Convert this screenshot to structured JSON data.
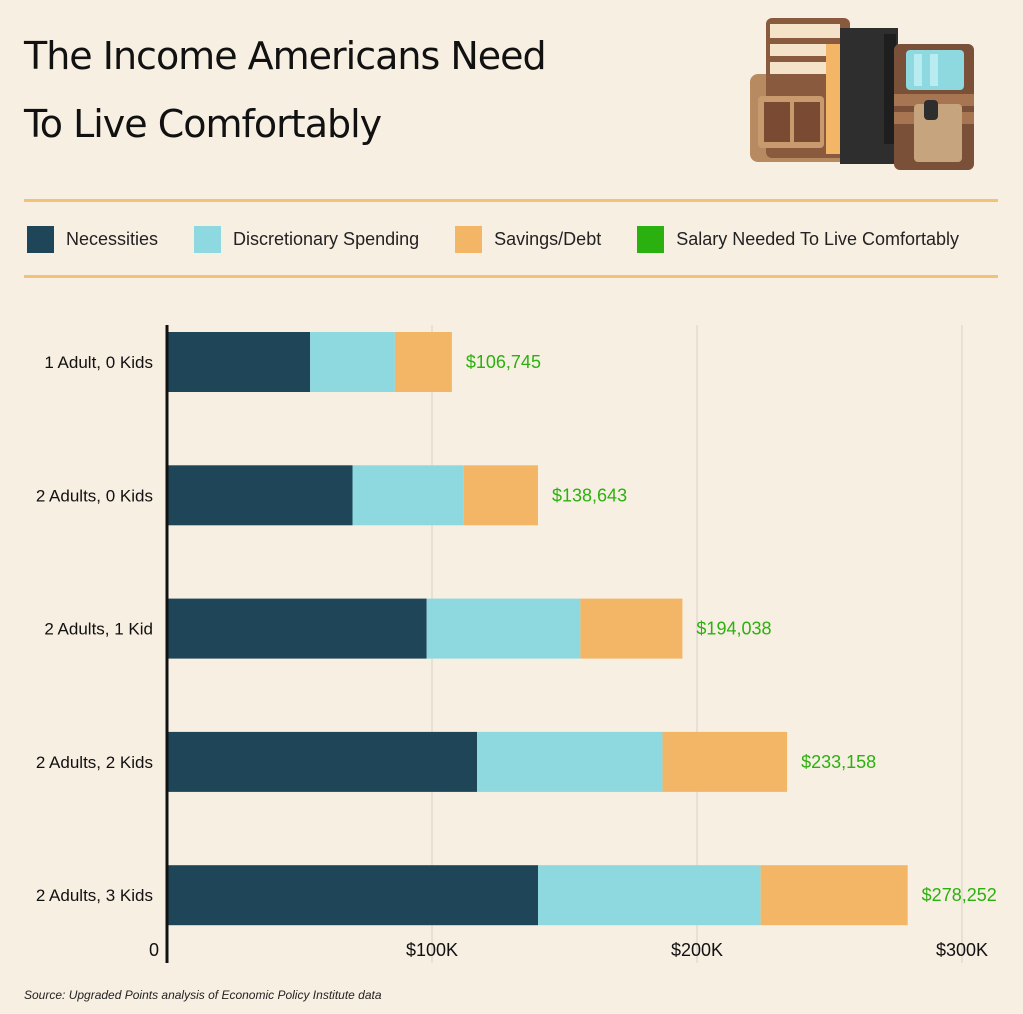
{
  "header": {
    "title_line1": "The Income Americans Need",
    "title_line2": "To Live Comfortably"
  },
  "legend": [
    {
      "label": "Necessities",
      "color": "#1f4559"
    },
    {
      "label": "Discretionary Spending",
      "color": "#8ed8e0"
    },
    {
      "label": "Savings/Debt",
      "color": "#f3b666"
    },
    {
      "label": "Salary Needed To Live Comfortably",
      "color": "#2bb10f"
    }
  ],
  "chart_data": {
    "type": "bar",
    "orientation": "horizontal",
    "stacked": true,
    "categories": [
      "1 Adult, 0 Kids",
      "2 Adults, 0 Kids",
      "2 Adults, 1 Kid",
      "2 Adults, 2 Kids",
      "2 Adults, 3 Kids"
    ],
    "series": [
      {
        "name": "Necessities",
        "color": "#1f4559",
        "values": [
          54000,
          70000,
          98000,
          117000,
          140000
        ]
      },
      {
        "name": "Discretionary Spending",
        "color": "#8ed8e0",
        "values": [
          32000,
          42000,
          58000,
          70000,
          84000
        ]
      },
      {
        "name": "Savings/Debt",
        "color": "#f3b666",
        "values": [
          21500,
          28000,
          38500,
          47000,
          55500
        ]
      }
    ],
    "totals": [
      "$106,745",
      "$138,643",
      "$194,038",
      "$233,158",
      "$278,252"
    ],
    "totals_color": "#2bb10f",
    "xlim": [
      0,
      300000
    ],
    "xticks": [
      {
        "value": 0,
        "label": "0"
      },
      {
        "value": 100000,
        "label": "$100K"
      },
      {
        "value": 200000,
        "label": "$200K"
      },
      {
        "value": 300000,
        "label": "$300K"
      }
    ],
    "grid": true
  },
  "source": "Source: Upgraded Points analysis of Economic Policy Institute data"
}
